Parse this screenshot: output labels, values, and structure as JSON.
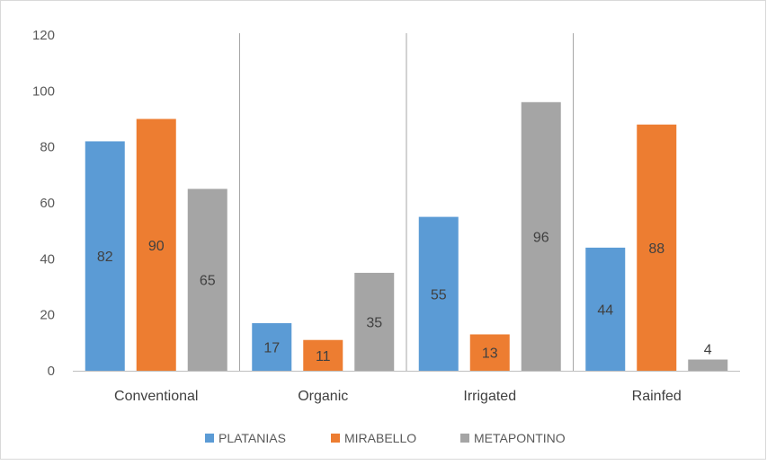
{
  "chart_data": {
    "type": "bar",
    "categories": [
      "Conventional",
      "Organic",
      "Irrigated",
      "Rainfed"
    ],
    "series": [
      {
        "name": "PLATANIAS",
        "values": [
          82,
          17,
          55,
          44
        ],
        "color": "#5b9bd5"
      },
      {
        "name": "MIRABELLO",
        "values": [
          90,
          11,
          13,
          88
        ],
        "color": "#ed7d31"
      },
      {
        "name": "METAPONTINO",
        "values": [
          65,
          35,
          96,
          4
        ],
        "color": "#a5a5a5"
      }
    ],
    "yticks": [
      "0",
      "20",
      "40",
      "60",
      "80",
      "100",
      "120"
    ],
    "ylim": [
      0,
      120
    ],
    "legend_position": "bottom",
    "grid": false,
    "separator_color": "#a6a6a6"
  }
}
